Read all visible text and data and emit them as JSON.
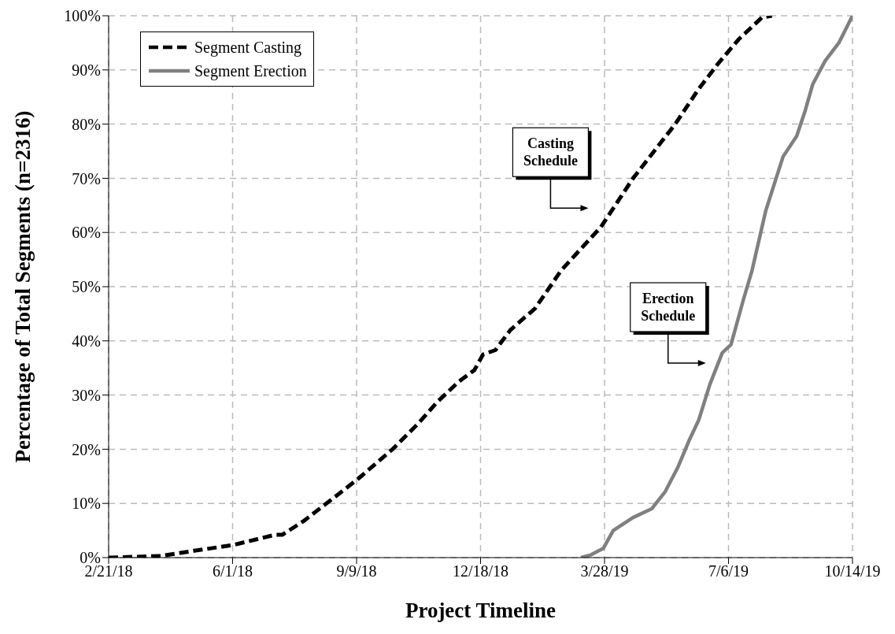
{
  "chart_data": {
    "type": "line",
    "xlabel": "Project Timeline",
    "ylabel": "Percentage of Total Segments (n=2316)",
    "xlim": [
      "2018-02-21",
      "2019-10-14"
    ],
    "xticks": [
      {
        "value": "2018-02-21",
        "label": "2/21/18"
      },
      {
        "value": "2018-06-01",
        "label": "6/1/18"
      },
      {
        "value": "2018-09-09",
        "label": "9/9/18"
      },
      {
        "value": "2018-12-18",
        "label": "12/18/18"
      },
      {
        "value": "2019-03-28",
        "label": "3/28/19"
      },
      {
        "value": "2019-07-06",
        "label": "7/6/19"
      },
      {
        "value": "2019-10-14",
        "label": "10/14/19"
      }
    ],
    "ylim": [
      0,
      100
    ],
    "yticks": [
      {
        "value": 0,
        "label": "0%"
      },
      {
        "value": 10,
        "label": "10%"
      },
      {
        "value": 20,
        "label": "20%"
      },
      {
        "value": 30,
        "label": "30%"
      },
      {
        "value": 40,
        "label": "40%"
      },
      {
        "value": 50,
        "label": "50%"
      },
      {
        "value": 60,
        "label": "60%"
      },
      {
        "value": 70,
        "label": "70%"
      },
      {
        "value": 80,
        "label": "80%"
      },
      {
        "value": 90,
        "label": "90%"
      },
      {
        "value": 100,
        "label": "100%"
      }
    ],
    "grid": true,
    "legend": "top left",
    "marker": "none",
    "series": [
      {
        "name": "Segment Casting",
        "color": "#000000",
        "line_style": "dashed",
        "x": [
          "2018-02-21",
          "2018-04-04",
          "2018-05-02",
          "2018-06-01",
          "2018-07-05",
          "2018-07-11",
          "2018-07-28",
          "2018-08-27",
          "2018-09-10",
          "2018-10-08",
          "2018-10-29",
          "2018-11-13",
          "2018-11-30",
          "2018-12-13",
          "2018-12-20",
          "2018-12-30",
          "2019-01-11",
          "2019-01-31",
          "2019-02-21",
          "2019-03-25",
          "2019-04-20",
          "2019-05-07",
          "2019-05-24",
          "2019-06-12",
          "2019-06-27",
          "2019-07-14",
          "2019-08-02",
          "2019-08-10"
        ],
        "values": [
          0,
          0.3,
          1.3,
          2.3,
          4.2,
          4.2,
          6.7,
          12,
          14.5,
          20,
          24.8,
          28.7,
          32.4,
          34.6,
          37.5,
          38.3,
          42,
          46,
          53,
          61,
          70,
          75,
          80,
          86.5,
          91,
          95.6,
          99.7,
          100
        ]
      },
      {
        "name": "Segment Erection",
        "color": "#808080",
        "line_style": "solid",
        "x": [
          "2019-03-09",
          "2019-03-17",
          "2019-03-27",
          "2019-04-04",
          "2019-04-20",
          "2019-05-05",
          "2019-05-16",
          "2019-05-26",
          "2019-06-04",
          "2019-06-12",
          "2019-06-21",
          "2019-07-01",
          "2019-07-08",
          "2019-07-18",
          "2019-07-25",
          "2019-08-05",
          "2019-08-19",
          "2019-08-30",
          "2019-09-06",
          "2019-09-12",
          "2019-09-22",
          "2019-10-03",
          "2019-10-14"
        ],
        "values": [
          0,
          0.5,
          1.7,
          5,
          7.4,
          9,
          12.2,
          16.6,
          21.5,
          25.4,
          32,
          37.8,
          39.3,
          47.6,
          53,
          64,
          74,
          77.8,
          82.6,
          87.4,
          91.7,
          95,
          100
        ]
      }
    ],
    "annotations": [
      "Casting Schedule",
      "Erection Schedule"
    ]
  }
}
